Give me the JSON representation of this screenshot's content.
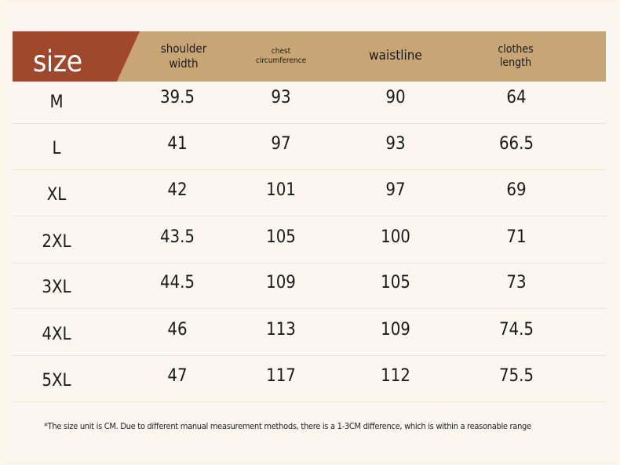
{
  "header": {
    "size": "size",
    "shoulder_line1": "shoulder",
    "shoulder_line2": "width",
    "chest_line1": "chest",
    "chest_line2": "circumference",
    "waistline": "waistline",
    "length_line1": "clothes",
    "length_line2": "length"
  },
  "rows": [
    {
      "size": "M",
      "shoulder": "39.5",
      "chest": "93",
      "waist": "90",
      "length": "64"
    },
    {
      "size": "L",
      "shoulder": "41",
      "chest": "97",
      "waist": "93",
      "length": "66.5"
    },
    {
      "size": "XL",
      "shoulder": "42",
      "chest": "101",
      "waist": "97",
      "length": "69"
    },
    {
      "size": "2XL",
      "shoulder": "43.5",
      "chest": "105",
      "waist": "100",
      "length": "71"
    },
    {
      "size": "3XL",
      "shoulder": "44.5",
      "chest": "109",
      "waist": "105",
      "length": "73"
    },
    {
      "size": "4XL",
      "shoulder": "46",
      "chest": "113",
      "waist": "109",
      "length": "74.5"
    },
    {
      "size": "5XL",
      "shoulder": "47",
      "chest": "117",
      "waist": "112",
      "length": "75.5"
    }
  ],
  "footnote": "*The size unit is CM. Due to different manual measurement methods, there is a 1-3CM difference, which is within a reasonable range",
  "colors": {
    "header_bg": "#c8a574",
    "size_tab": "#a0482c",
    "page_bg": "#fbf5ec"
  }
}
